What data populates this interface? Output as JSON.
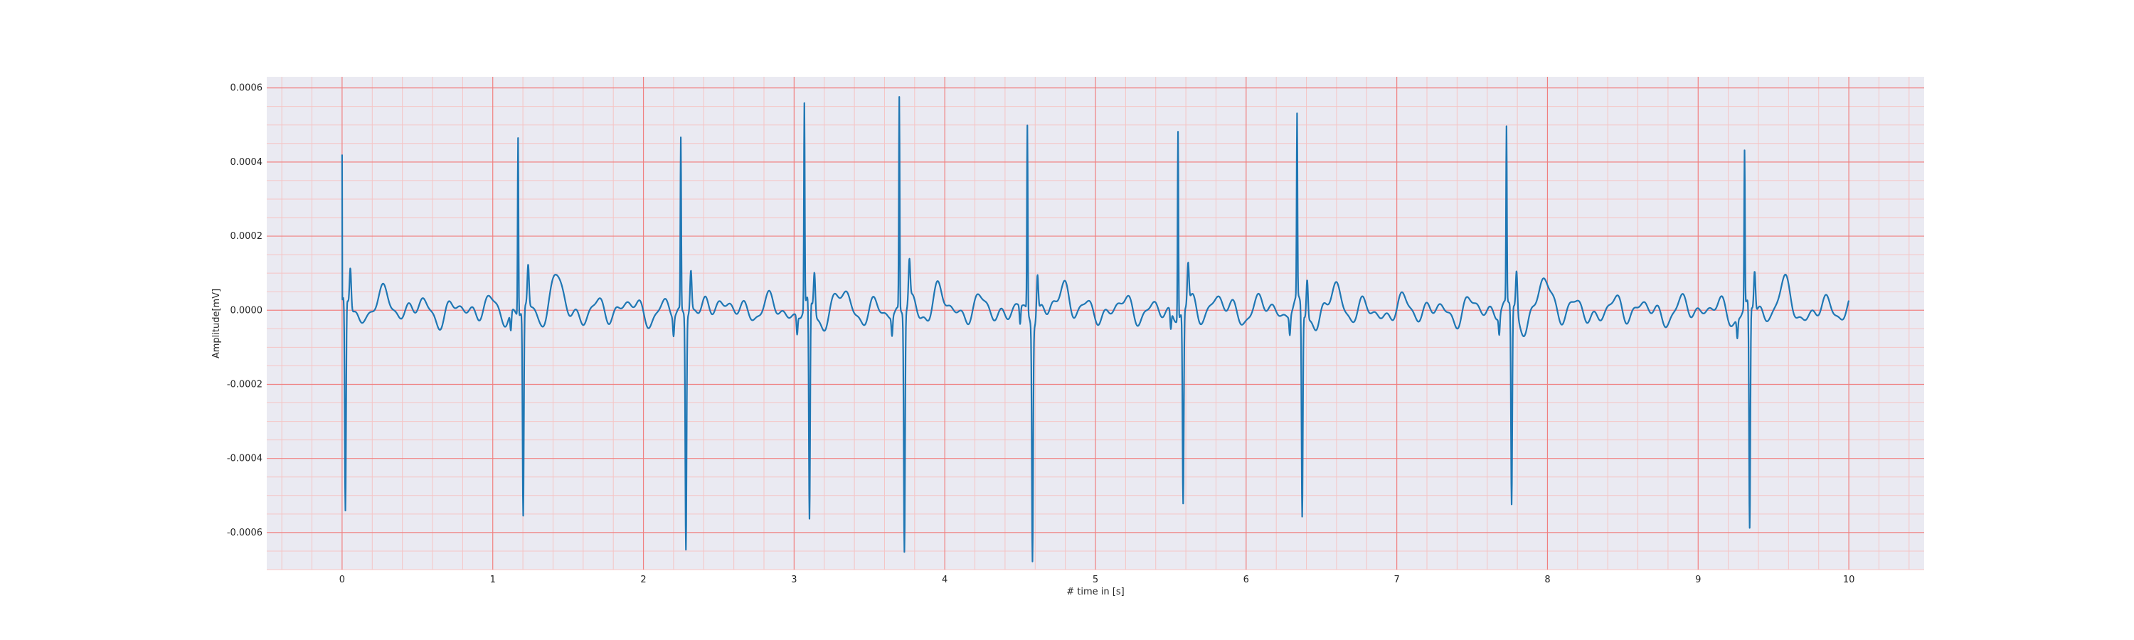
{
  "chart_data": {
    "type": "line",
    "title": "",
    "xlabel": "# time in [s]",
    "ylabel": "Amplitude[mV]",
    "xlim": [
      -0.5,
      10.5
    ],
    "ylim": [
      -0.0007,
      0.00063
    ],
    "xticks": [
      0,
      1,
      2,
      3,
      4,
      5,
      6,
      7,
      8,
      9,
      10
    ],
    "xtick_labels": [
      "0",
      "1",
      "2",
      "3",
      "4",
      "5",
      "6",
      "7",
      "8",
      "9",
      "10"
    ],
    "yticks": [
      -0.0006,
      -0.0004,
      -0.0002,
      0.0,
      0.0002,
      0.0004,
      0.0006
    ],
    "ytick_labels": [
      "-0.0006",
      "-0.0004",
      "-0.0002",
      "0.0000",
      "0.0002",
      "0.0004",
      "0.0006"
    ],
    "grid": true,
    "minor_grid": true,
    "colors": {
      "background": "#eaeaf2",
      "major_grid": "#f08080",
      "minor_grid": "#f5c4c4",
      "line": "#1f77b4"
    },
    "beats": [
      {
        "t": 0.0,
        "r": 0.00042,
        "s": -0.00058
      },
      {
        "t": 1.18,
        "r": 0.00048,
        "s": -0.00056
      },
      {
        "t": 2.26,
        "r": 0.00046,
        "s": -0.00063
      },
      {
        "t": 3.08,
        "r": 0.00055,
        "s": -0.0006
      },
      {
        "t": 3.71,
        "r": 0.00057,
        "s": -0.00064
      },
      {
        "t": 4.56,
        "r": 0.0005,
        "s": -0.00063
      },
      {
        "t": 5.56,
        "r": 0.00051,
        "s": -0.00052
      },
      {
        "t": 6.35,
        "r": 0.00049,
        "s": -0.00056
      },
      {
        "t": 7.74,
        "r": 0.00047,
        "s": -0.00054
      },
      {
        "t": 9.32,
        "r": 0.00042,
        "s": -0.00061
      }
    ],
    "t_end": 10.0
  }
}
